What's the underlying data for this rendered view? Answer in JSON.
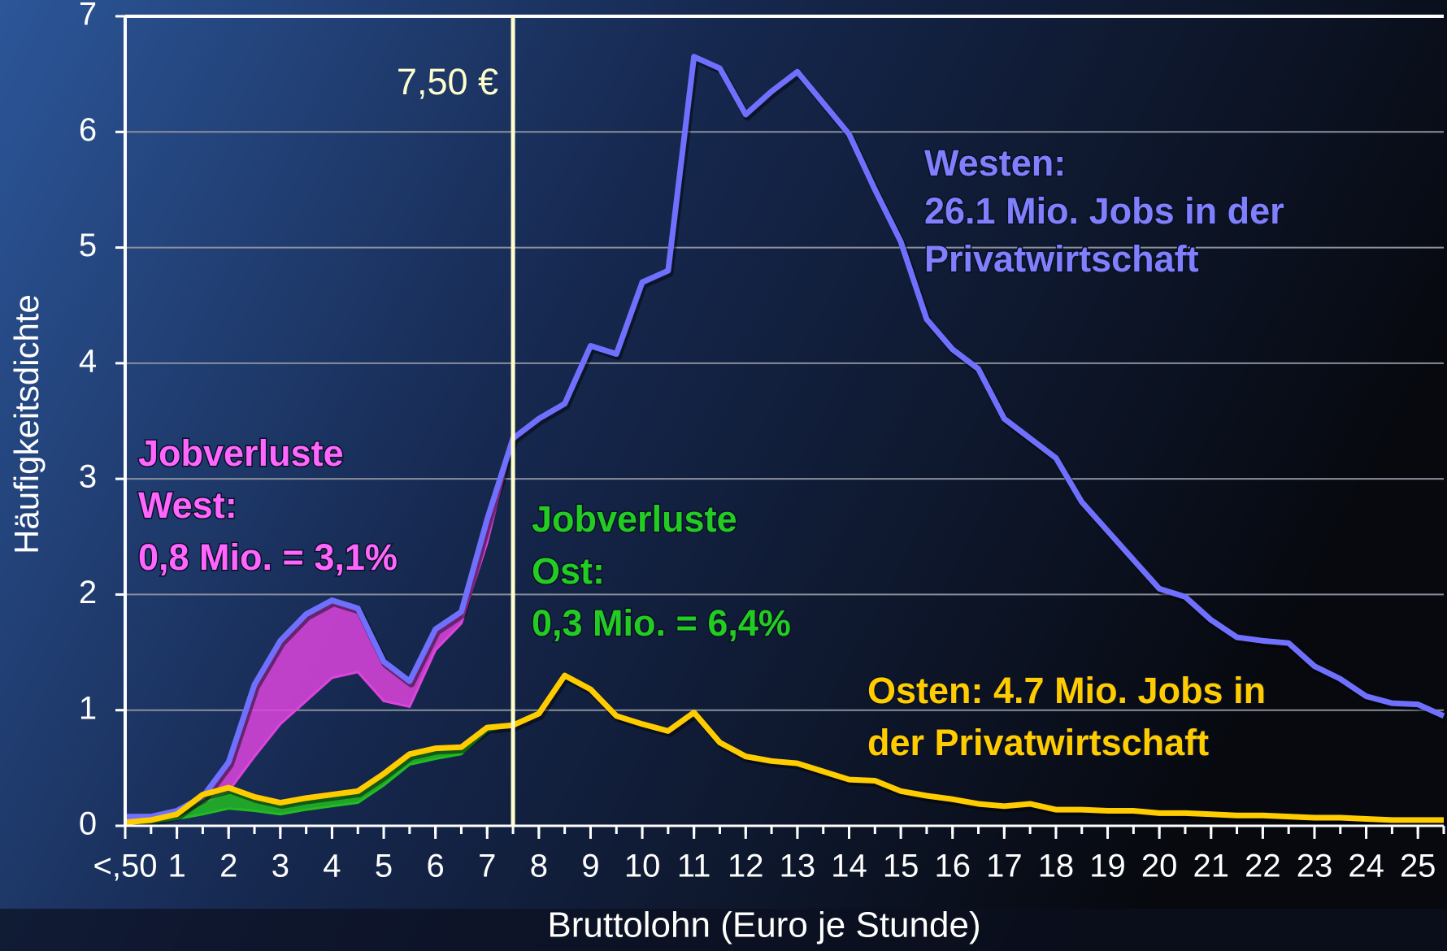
{
  "chart_data": {
    "type": "line",
    "xlabel": "Bruttolohn (Euro je Stunde)",
    "ylabel": "Häufigkeitsdichte",
    "x": [
      0,
      0.5,
      1,
      1.5,
      2,
      2.5,
      3,
      3.5,
      4,
      4.5,
      5,
      5.5,
      6,
      6.5,
      7,
      7.5,
      8,
      8.5,
      9,
      9.5,
      10,
      10.5,
      11,
      11.5,
      12,
      12.5,
      13,
      13.5,
      14,
      14.5,
      15,
      15.5,
      16,
      16.5,
      17,
      17.5,
      18,
      18.5,
      19,
      19.5,
      20,
      20.5,
      21,
      21.5,
      22,
      22.5,
      23,
      23.5,
      24,
      24.5,
      25,
      25.5
    ],
    "series": [
      {
        "color": "#7070ff",
        "values": [
          0.08,
          0.08,
          0.13,
          0.25,
          0.55,
          1.22,
          1.6,
          1.83,
          1.95,
          1.88,
          1.42,
          1.25,
          1.7,
          1.85,
          2.65,
          3.35,
          3.52,
          3.65,
          4.15,
          4.08,
          4.7,
          4.8,
          6.65,
          6.55,
          6.15,
          6.35,
          6.52,
          6.25,
          5.98,
          5.5,
          5.05,
          4.38,
          4.12,
          3.95,
          3.52,
          3.35,
          3.18,
          2.8,
          2.55,
          2.3,
          2.05,
          1.98,
          1.78,
          1.63,
          1.6,
          1.58,
          1.38,
          1.27,
          1.12,
          1.06,
          1.05,
          0.95
        ],
        "after_loss_color": "#dd44dd",
        "after_loss": [
          0.08,
          0.08,
          0.12,
          0.2,
          0.3,
          0.6,
          0.88,
          1.08,
          1.28,
          1.33,
          1.08,
          1.03,
          1.52,
          1.75,
          2.45,
          3.35,
          null,
          null,
          null,
          null,
          null,
          null,
          null,
          null,
          null,
          null,
          null,
          null,
          null,
          null,
          null,
          null,
          null,
          null,
          null,
          null,
          null,
          null,
          null,
          null,
          null,
          null,
          null,
          null,
          null,
          null,
          null,
          null,
          null,
          null,
          null,
          null
        ]
      },
      {
        "color": "#ffcc00",
        "values": [
          0.03,
          0.05,
          0.1,
          0.27,
          0.33,
          0.25,
          0.2,
          0.24,
          0.27,
          0.3,
          0.45,
          0.62,
          0.67,
          0.68,
          0.85,
          0.87,
          0.97,
          1.3,
          1.18,
          0.95,
          0.88,
          0.82,
          0.98,
          0.72,
          0.6,
          0.56,
          0.54,
          0.47,
          0.4,
          0.39,
          0.3,
          0.26,
          0.23,
          0.19,
          0.17,
          0.19,
          0.14,
          0.14,
          0.13,
          0.13,
          0.11,
          0.11,
          0.1,
          0.09,
          0.09,
          0.08,
          0.07,
          0.07,
          0.06,
          0.05,
          0.05,
          0.05
        ],
        "after_loss_color": "#22bb22",
        "after_loss": [
          0.02,
          0.03,
          0.06,
          0.1,
          0.15,
          0.13,
          0.1,
          0.14,
          0.17,
          0.2,
          0.35,
          0.53,
          0.58,
          0.62,
          0.82,
          0.87,
          null,
          null,
          null,
          null,
          null,
          null,
          null,
          null,
          null,
          null,
          null,
          null,
          null,
          null,
          null,
          null,
          null,
          null,
          null,
          null,
          null,
          null,
          null,
          null,
          null,
          null,
          null,
          null,
          null,
          null,
          null,
          null,
          null,
          null,
          null,
          null
        ]
      }
    ],
    "xlim": [
      0,
      25.5
    ],
    "ylim": [
      0,
      7
    ],
    "yticks": [
      0,
      1,
      2,
      3,
      4,
      5,
      6,
      7
    ],
    "xticks": [
      {
        "value": 0,
        "label": "<,50"
      },
      1,
      2,
      3,
      4,
      5,
      6,
      7,
      8,
      9,
      10,
      11,
      12,
      13,
      14,
      15,
      16,
      17,
      18,
      19,
      20,
      21,
      22,
      23,
      24,
      25
    ],
    "grid": true,
    "threshold": {
      "x": 7.5,
      "label": "7,50 €",
      "color": "#ffffcc"
    },
    "annotations": [
      {
        "color": "#8080ff",
        "lines": [
          "Westen:",
          "26.1 Mio.  Jobs in der",
          "Privatwirtschaft"
        ]
      },
      {
        "color": "#ff66ff",
        "lines": [
          "Jobverluste",
          "West:",
          "0,8 Mio. = 3,1%"
        ]
      },
      {
        "color": "#22cc22",
        "lines": [
          "Jobverluste",
          "Ost:",
          "0,3 Mio. = 6,4%"
        ]
      },
      {
        "color": "#ffcc00",
        "lines": [
          "Osten: 4.7 Mio. Jobs in",
          "der Privatwirtschaft"
        ]
      }
    ]
  }
}
